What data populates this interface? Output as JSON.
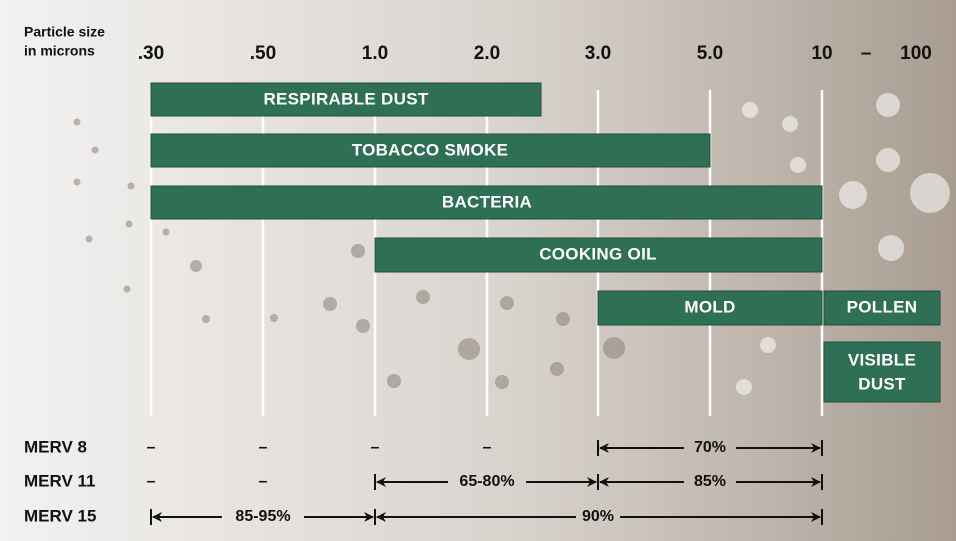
{
  "axis_label": [
    "Particle size",
    "in microns"
  ],
  "columns": [
    ".30",
    ".50",
    "1.0",
    "2.0",
    "3.0",
    "5.0",
    "10",
    "–",
    "100"
  ],
  "bars": [
    "RESPIRABLE DUST",
    "TOBACCO SMOKE",
    "BACTERIA",
    "COOKING OIL",
    "MOLD",
    "POLLEN",
    "VISIBLE",
    "DUST"
  ],
  "merv": [
    {
      "name": "MERV 8",
      "cells": [
        "–",
        "–",
        "–",
        "–",
        "70%"
      ]
    },
    {
      "name": "MERV 11",
      "cells": [
        "–",
        "–",
        "65-80%",
        "85%"
      ]
    },
    {
      "name": "MERV 15",
      "cells": [
        "85-95%",
        "90%"
      ]
    }
  ]
}
